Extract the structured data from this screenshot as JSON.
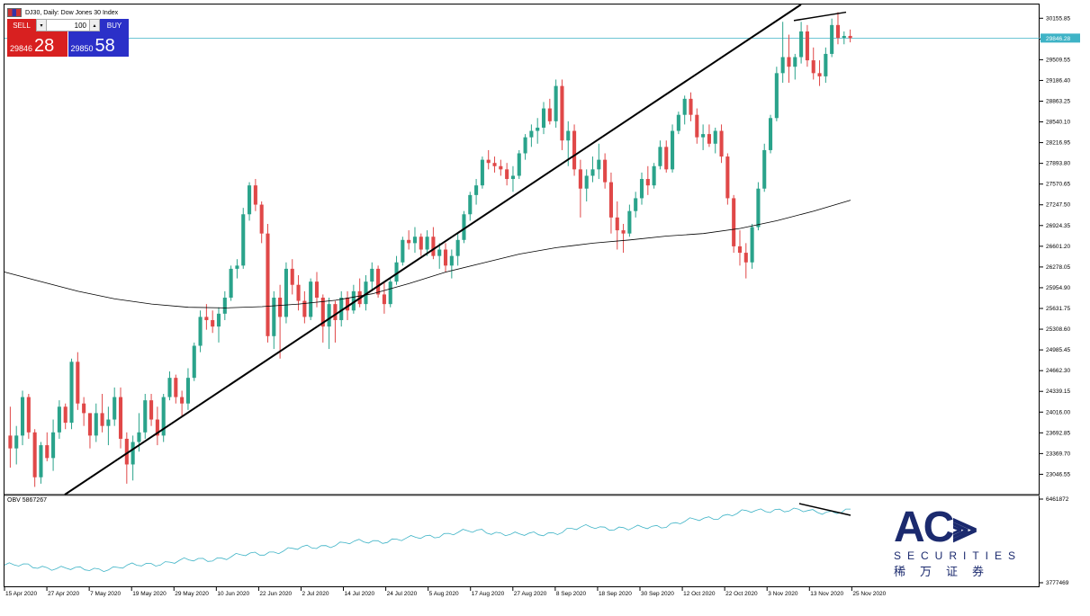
{
  "window": {
    "title": "DJ30, Daily: Dow Jones 30 Index",
    "colors": {
      "bull": "#2aa38b",
      "bear": "#e04848",
      "obv": "#3eb3c6",
      "ma": "#000000",
      "bid_line": "#3eb3c6"
    }
  },
  "trade_panel": {
    "sell_label": "SELL",
    "buy_label": "BUY",
    "lot": "100",
    "sell_price_small": "29846",
    "sell_price_big": "28",
    "buy_price_small": "29850",
    "buy_price_big": "58"
  },
  "price_axis": {
    "labels": [
      "30155.85",
      "29832.70",
      "29509.55",
      "29186.40",
      "28863.25",
      "28540.10",
      "28216.95",
      "27893.80",
      "27570.65",
      "27247.50",
      "26924.35",
      "26601.20",
      "26278.05",
      "25954.90",
      "25631.75",
      "25308.60",
      "24985.45",
      "24662.30",
      "24339.15",
      "24016.00",
      "23692.85",
      "23369.70",
      "23046.55"
    ],
    "current_price": "29846.28"
  },
  "obv_panel": {
    "label": "OBV 5867267",
    "top_value": "6461872",
    "bottom_value": "3777469"
  },
  "time_axis": {
    "labels": [
      "15 Apr 2020",
      "27 Apr 2020",
      "7 May 2020",
      "19 May 2020",
      "29 May 2020",
      "10 Jun 2020",
      "22 Jun 2020",
      "2 Jul 2020",
      "14 Jul 2020",
      "24 Jul 2020",
      "5 Aug 2020",
      "17 Aug 2020",
      "27 Aug 2020",
      "8 Sep 2020",
      "18 Sep 2020",
      "30 Sep 2020",
      "12 Oct 2020",
      "22 Oct 2020",
      "3 Nov 2020",
      "13 Nov 2020",
      "25 Nov 2020"
    ]
  },
  "logo": {
    "main": "AC",
    "sub": "SECURITIES",
    "cn": "稀万证券"
  },
  "chart_data": {
    "type": "candlestick",
    "title": "DJ30, Daily: Dow Jones 30 Index",
    "ylim": [
      22800,
      30300
    ],
    "candles": [
      [
        23650,
        24100,
        23150,
        23450
      ],
      [
        23450,
        23800,
        23200,
        23650
      ],
      [
        23650,
        24350,
        23500,
        24250
      ],
      [
        24250,
        24300,
        23600,
        23700
      ],
      [
        23700,
        23750,
        22850,
        23000
      ],
      [
        23000,
        23550,
        22900,
        23500
      ],
      [
        23500,
        23700,
        23250,
        23300
      ],
      [
        23300,
        23900,
        23100,
        23700
      ],
      [
        23700,
        24200,
        23600,
        24100
      ],
      [
        24100,
        24150,
        23750,
        23850
      ],
      [
        23850,
        24850,
        23750,
        24800
      ],
      [
        24800,
        24950,
        24050,
        24150
      ],
      [
        24150,
        24250,
        23800,
        24000
      ],
      [
        24000,
        24000,
        23450,
        23650
      ],
      [
        23650,
        24150,
        23550,
        24000
      ],
      [
        24000,
        24300,
        23700,
        23800
      ],
      [
        23800,
        24100,
        23500,
        23900
      ],
      [
        23900,
        24400,
        23800,
        24250
      ],
      [
        24250,
        24400,
        23450,
        23600
      ],
      [
        23600,
        23700,
        22900,
        23200
      ],
      [
        23200,
        23650,
        22950,
        23550
      ],
      [
        23550,
        24000,
        23400,
        23700
      ],
      [
        23700,
        24300,
        23600,
        24200
      ],
      [
        24200,
        24300,
        23800,
        23900
      ],
      [
        23900,
        24100,
        23500,
        23650
      ],
      [
        23650,
        24300,
        23550,
        24250
      ],
      [
        24250,
        24650,
        24200,
        24550
      ],
      [
        24550,
        24600,
        24150,
        24250
      ],
      [
        24250,
        24350,
        23950,
        24150
      ],
      [
        24150,
        24700,
        24050,
        24550
      ],
      [
        24550,
        25100,
        24500,
        25050
      ],
      [
        25050,
        25600,
        24950,
        25500
      ],
      [
        25500,
        25700,
        25300,
        25450
      ],
      [
        25450,
        25600,
        25250,
        25350
      ],
      [
        25350,
        25650,
        25100,
        25550
      ],
      [
        25550,
        25900,
        25450,
        25800
      ],
      [
        25800,
        26300,
        25750,
        26250
      ],
      [
        26250,
        26400,
        26100,
        26300
      ],
      [
        26300,
        27200,
        26250,
        27100
      ],
      [
        27100,
        27600,
        27000,
        27550
      ],
      [
        27550,
        27650,
        27150,
        27250
      ],
      [
        27250,
        27300,
        26650,
        26800
      ],
      [
        26800,
        26950,
        25100,
        25200
      ],
      [
        25200,
        25900,
        25000,
        25800
      ],
      [
        25800,
        26000,
        24850,
        25500
      ],
      [
        25500,
        26350,
        25400,
        26250
      ],
      [
        26250,
        26400,
        25850,
        26000
      ],
      [
        26000,
        26150,
        25600,
        25750
      ],
      [
        25750,
        25900,
        25400,
        25500
      ],
      [
        25500,
        26100,
        25450,
        26050
      ],
      [
        26050,
        26200,
        25650,
        25800
      ],
      [
        25800,
        25850,
        25100,
        25350
      ],
      [
        25350,
        25800,
        25000,
        25700
      ],
      [
        25700,
        25750,
        25100,
        25450
      ],
      [
        25450,
        25900,
        25350,
        25800
      ],
      [
        25800,
        25900,
        25450,
        25600
      ],
      [
        25600,
        26000,
        25550,
        25900
      ],
      [
        25900,
        26100,
        25650,
        25700
      ],
      [
        25700,
        26150,
        25600,
        26050
      ],
      [
        26050,
        26350,
        25900,
        26250
      ],
      [
        26250,
        26300,
        25800,
        25850
      ],
      [
        25850,
        26050,
        25550,
        25700
      ],
      [
        25700,
        26100,
        25650,
        26050
      ],
      [
        26050,
        26450,
        26000,
        26350
      ],
      [
        26350,
        26750,
        26300,
        26700
      ],
      [
        26700,
        26850,
        26550,
        26650
      ],
      [
        26650,
        26900,
        26500,
        26750
      ],
      [
        26750,
        26800,
        26450,
        26550
      ],
      [
        26550,
        26850,
        26450,
        26750
      ],
      [
        26750,
        26900,
        26400,
        26450
      ],
      [
        26450,
        26650,
        26250,
        26550
      ],
      [
        26550,
        26650,
        26200,
        26300
      ],
      [
        26300,
        26550,
        26100,
        26450
      ],
      [
        26450,
        26800,
        26300,
        26700
      ],
      [
        26700,
        27150,
        26650,
        27100
      ],
      [
        27100,
        27450,
        27000,
        27400
      ],
      [
        27400,
        27650,
        27250,
        27550
      ],
      [
        27550,
        28000,
        27500,
        27950
      ],
      [
        27950,
        28100,
        27800,
        27900
      ],
      [
        27900,
        28000,
        27750,
        27850
      ],
      [
        27850,
        27950,
        27700,
        27800
      ],
      [
        27800,
        27900,
        27550,
        27650
      ],
      [
        27650,
        27850,
        27450,
        27700
      ],
      [
        27700,
        28100,
        27650,
        28050
      ],
      [
        28050,
        28350,
        27950,
        28300
      ],
      [
        28300,
        28500,
        28150,
        28400
      ],
      [
        28400,
        28600,
        28200,
        28450
      ],
      [
        28450,
        28850,
        28350,
        28750
      ],
      [
        28750,
        28900,
        28500,
        28550
      ],
      [
        28550,
        29200,
        28450,
        29100
      ],
      [
        29100,
        29200,
        28100,
        28250
      ],
      [
        28250,
        28550,
        27850,
        28400
      ],
      [
        28400,
        28500,
        27700,
        27800
      ],
      [
        27800,
        27950,
        27050,
        27500
      ],
      [
        27500,
        27800,
        27300,
        27700
      ],
      [
        27700,
        28000,
        27600,
        27800
      ],
      [
        27800,
        28200,
        27650,
        27950
      ],
      [
        27950,
        28050,
        27500,
        27600
      ],
      [
        27600,
        27750,
        26800,
        27050
      ],
      [
        27050,
        27300,
        26550,
        26850
      ],
      [
        26850,
        26950,
        26500,
        26800
      ],
      [
        26800,
        27250,
        26750,
        27150
      ],
      [
        27150,
        27450,
        27050,
        27350
      ],
      [
        27350,
        27750,
        27250,
        27650
      ],
      [
        27650,
        27850,
        27400,
        27550
      ],
      [
        27550,
        27900,
        27500,
        27850
      ],
      [
        27850,
        28250,
        27800,
        28150
      ],
      [
        28150,
        28250,
        27750,
        27800
      ],
      [
        27800,
        28500,
        27750,
        28400
      ],
      [
        28400,
        28700,
        28350,
        28650
      ],
      [
        28650,
        28950,
        28500,
        28900
      ],
      [
        28900,
        29000,
        28550,
        28650
      ],
      [
        28650,
        28750,
        28200,
        28300
      ],
      [
        28300,
        28500,
        28100,
        28350
      ],
      [
        28350,
        28500,
        28150,
        28200
      ],
      [
        28200,
        28450,
        28050,
        28400
      ],
      [
        28400,
        28500,
        27900,
        28000
      ],
      [
        28000,
        28050,
        27250,
        27350
      ],
      [
        27350,
        27400,
        26500,
        26600
      ],
      [
        26600,
        26850,
        26300,
        26500
      ],
      [
        26500,
        26650,
        26100,
        26350
      ],
      [
        26350,
        26950,
        26250,
        26900
      ],
      [
        26900,
        27600,
        26850,
        27500
      ],
      [
        27500,
        28200,
        27450,
        28100
      ],
      [
        28100,
        28650,
        28050,
        28600
      ],
      [
        28600,
        29400,
        28550,
        29300
      ],
      [
        29300,
        30100,
        29150,
        29550
      ],
      [
        29550,
        29900,
        29150,
        29400
      ],
      [
        29400,
        29600,
        29200,
        29550
      ],
      [
        29550,
        30100,
        29450,
        29950
      ],
      [
        29950,
        30050,
        29400,
        29500
      ],
      [
        29500,
        29700,
        29200,
        29300
      ],
      [
        29300,
        29500,
        29100,
        29250
      ],
      [
        29250,
        29700,
        29150,
        29600
      ],
      [
        29600,
        30150,
        29550,
        30050
      ],
      [
        30050,
        30250,
        29750,
        29850
      ],
      [
        29850,
        29950,
        29750,
        29880
      ],
      [
        29880,
        29980,
        29780,
        29846
      ]
    ],
    "moving_average": [
      26200,
      26050,
      25900,
      25780,
      25700,
      25650,
      25640,
      25660,
      25700,
      25760,
      25860,
      26020,
      26200,
      26340,
      26480,
      26580,
      26650,
      26700,
      26760,
      26800,
      26880,
      27000,
      27150,
      27320
    ],
    "obv": [
      0.2,
      0.18,
      0.14,
      0.16,
      0.22,
      0.26,
      0.3,
      0.36,
      0.42,
      0.48,
      0.52,
      0.55,
      0.62,
      0.66,
      0.6,
      0.64,
      0.72,
      0.68,
      0.74,
      0.82,
      0.9,
      0.95,
      0.91,
      0.93
    ],
    "annotations": [
      "uptrend line",
      "price divergence line",
      "OBV divergence line"
    ]
  }
}
